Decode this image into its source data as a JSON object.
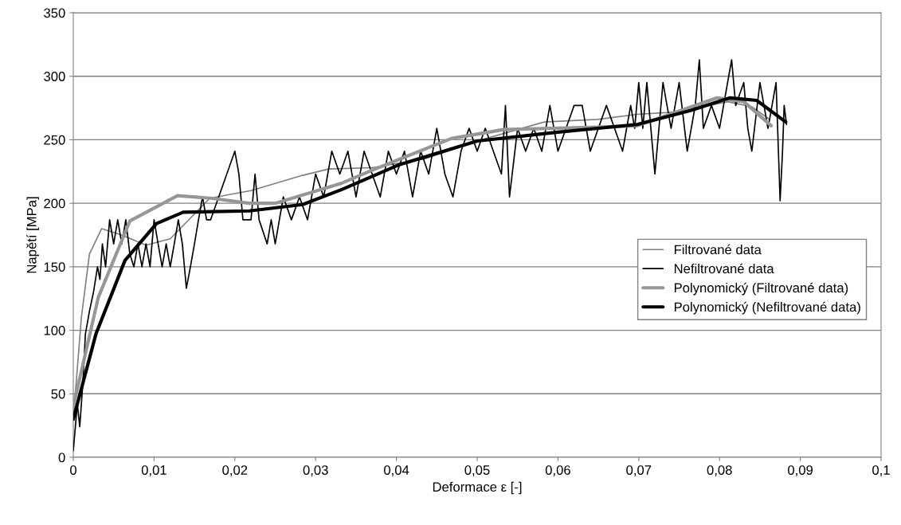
{
  "chart_data": {
    "type": "line",
    "xlabel": "Deformace ε [-]",
    "ylabel": "Napětí [MPa]",
    "xlim": [
      0,
      0.1
    ],
    "ylim": [
      0,
      350
    ],
    "xticks": [
      0,
      {
        "value": 0.01,
        "label": "0,01"
      },
      {
        "value": 0.02,
        "label": "0,02"
      },
      {
        "value": 0.03,
        "label": "0,03"
      },
      {
        "value": 0.04,
        "label": "0,04"
      },
      {
        "value": 0.05,
        "label": "0,05"
      },
      {
        "value": 0.06,
        "label": "0,06"
      },
      {
        "value": 0.07,
        "label": "0,07"
      },
      {
        "value": 0.08,
        "label": "0,08"
      },
      {
        "value": 0.09,
        "label": "0,09"
      },
      {
        "value": 0.1,
        "label": "0,1"
      }
    ],
    "yticks": [
      0,
      50,
      100,
      150,
      200,
      250,
      300,
      350
    ],
    "grid": "y",
    "legend": "right",
    "marker": "none",
    "line_style": "solid",
    "series": [
      {
        "name": "Filtrované data",
        "color": "#808080",
        "x": [
          0,
          0.001,
          0.002,
          0.0035,
          0.006,
          0.009,
          0.012,
          0.0169,
          0.022,
          0.0284,
          0.0316,
          0.037,
          0.0435,
          0.05,
          0.0583,
          0.0649,
          0.0698,
          0.075,
          0.081,
          0.084,
          0.0862
        ],
        "values": [
          30,
          110,
          160,
          180,
          175,
          167,
          172,
          204,
          210,
          222,
          227,
          228,
          235,
          249,
          264,
          266,
          270,
          272,
          280,
          276,
          266
        ]
      },
      {
        "name": "Nefiltrované data",
        "color": "#000000",
        "x": [
          0,
          0.0005,
          0.0008,
          0.001,
          0.0012,
          0.0015,
          0.002,
          0.0025,
          0.003,
          0.0033,
          0.0036,
          0.004,
          0.0045,
          0.005,
          0.0055,
          0.006,
          0.0065,
          0.007,
          0.0075,
          0.008,
          0.0085,
          0.009,
          0.0095,
          0.01,
          0.0105,
          0.011,
          0.0115,
          0.012,
          0.0125,
          0.013,
          0.0135,
          0.014,
          0.0145,
          0.015,
          0.0155,
          0.016,
          0.0165,
          0.017,
          0.018,
          0.019,
          0.02,
          0.0205,
          0.021,
          0.022,
          0.0225,
          0.023,
          0.024,
          0.0245,
          0.025,
          0.026,
          0.027,
          0.028,
          0.029,
          0.03,
          0.031,
          0.032,
          0.033,
          0.034,
          0.035,
          0.036,
          0.037,
          0.038,
          0.039,
          0.04,
          0.041,
          0.042,
          0.043,
          0.044,
          0.045,
          0.046,
          0.047,
          0.048,
          0.049,
          0.05,
          0.051,
          0.052,
          0.053,
          0.0535,
          0.054,
          0.055,
          0.056,
          0.057,
          0.058,
          0.059,
          0.06,
          0.061,
          0.062,
          0.063,
          0.064,
          0.065,
          0.066,
          0.067,
          0.068,
          0.069,
          0.0695,
          0.07,
          0.0705,
          0.071,
          0.0715,
          0.072,
          0.073,
          0.074,
          0.075,
          0.076,
          0.077,
          0.0775,
          0.078,
          0.079,
          0.08,
          0.0815,
          0.082,
          0.083,
          0.0835,
          0.084,
          0.085,
          0.086,
          0.087,
          0.0875,
          0.0878,
          0.088,
          0.0883
        ],
        "values": [
          5,
          42,
          24,
          42,
          60,
          97,
          115,
          130,
          150,
          140,
          168,
          150,
          187,
          168,
          187,
          168,
          187,
          160,
          150,
          168,
          150,
          168,
          150,
          187,
          168,
          150,
          168,
          150,
          168,
          187,
          168,
          133,
          150,
          168,
          187,
          205,
          187,
          187,
          205,
          223,
          241,
          223,
          187,
          187,
          223,
          187,
          168,
          187,
          168,
          205,
          187,
          205,
          187,
          223,
          205,
          241,
          223,
          241,
          205,
          241,
          223,
          205,
          241,
          223,
          241,
          205,
          241,
          223,
          259,
          223,
          205,
          241,
          259,
          241,
          259,
          241,
          223,
          277,
          205,
          259,
          241,
          259,
          241,
          277,
          241,
          259,
          277,
          277,
          241,
          259,
          277,
          259,
          241,
          277,
          259,
          295,
          259,
          295,
          259,
          223,
          295,
          259,
          295,
          241,
          277,
          313,
          259,
          277,
          259,
          313,
          277,
          295,
          259,
          241,
          295,
          259,
          295,
          202,
          241,
          277,
          262
        ]
      },
      {
        "name": "Polynomický (Filtrované data)",
        "color": "#969696",
        "x": [
          0,
          0.0031,
          0.007,
          0.0129,
          0.017,
          0.0218,
          0.025,
          0.0333,
          0.037,
          0.0468,
          0.0533,
          0.0649,
          0.0698,
          0.0797,
          0.083,
          0.0864
        ],
        "values": [
          40,
          126,
          186,
          206,
          204,
          200,
          200,
          216,
          226,
          251,
          258,
          260,
          261,
          283,
          280,
          261
        ]
      },
      {
        "name": "Polynomický (Nefiltrované data)",
        "color": "#000000",
        "x": [
          0,
          0.0028,
          0.0064,
          0.0103,
          0.0136,
          0.0218,
          0.0284,
          0.0333,
          0.0402,
          0.05,
          0.06,
          0.0698,
          0.0764,
          0.0813,
          0.0846,
          0.0882
        ],
        "values": [
          30,
          97,
          155,
          184,
          193,
          194,
          199,
          211,
          230,
          249,
          256,
          262,
          273,
          283,
          281,
          264
        ]
      }
    ]
  }
}
